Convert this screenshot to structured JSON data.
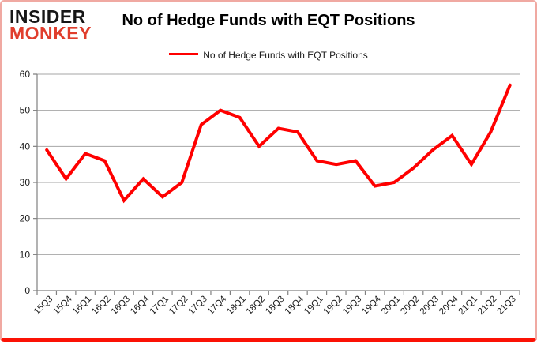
{
  "branding": {
    "logo_line1": "INSIDER",
    "logo_line2": "MONKEY",
    "logo_color_primary": "#161616",
    "logo_color_secondary": "#e03e2d"
  },
  "header": {
    "title": "No of Hedge Funds with EQT Positions"
  },
  "legend": {
    "label": "No of Hedge Funds with EQT Positions",
    "swatch_color": "#ff0000"
  },
  "chart_data": {
    "type": "line",
    "title": "No of Hedge Funds with EQT Positions",
    "series": [
      {
        "name": "No of Hedge Funds with EQT Positions",
        "color": "#ff0000",
        "values": [
          39,
          31,
          38,
          36,
          25,
          31,
          26,
          30,
          46,
          50,
          48,
          40,
          45,
          44,
          36,
          35,
          36,
          29,
          30,
          34,
          39,
          43,
          35,
          44,
          57
        ]
      }
    ],
    "categories": [
      "15Q3",
      "15Q4",
      "16Q1",
      "16Q2",
      "16Q3",
      "16Q4",
      "17Q1",
      "17Q2",
      "17Q3",
      "17Q4",
      "18Q1",
      "18Q2",
      "18Q3",
      "18Q4",
      "19Q1",
      "19Q2",
      "19Q3",
      "19Q4",
      "20Q1",
      "20Q2",
      "20Q3",
      "20Q4",
      "21Q1",
      "21Q2",
      "21Q3"
    ],
    "xlabel": "",
    "ylabel": "",
    "ylim": [
      0,
      60
    ],
    "yticks": [
      0,
      10,
      20,
      30,
      40,
      50,
      60
    ],
    "grid": true,
    "gridline_color": "#a6a6a6",
    "axis_color": "#808080",
    "tick_label_color": "#1a1a1a",
    "legend_position": "top"
  }
}
